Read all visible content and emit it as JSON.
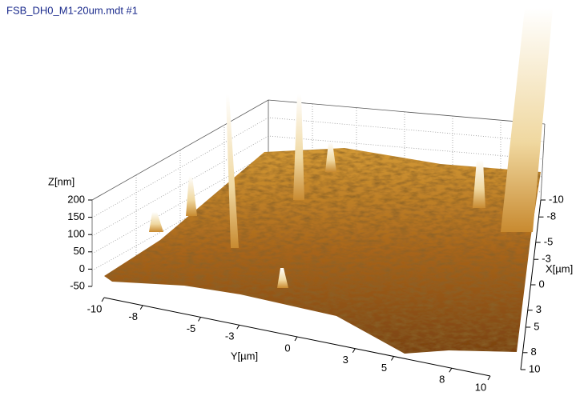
{
  "chart_data": {
    "type": "surface3d",
    "title": "FSB_DH0_M1-20um.mdt #1",
    "zlabel": "Z[nm]",
    "xlabel": "X[µm]",
    "ylabel": "Y[µm]",
    "zlim": [
      -50,
      200
    ],
    "zticks": [
      200,
      150,
      100,
      50,
      0,
      -50
    ],
    "xlim": [
      -10,
      10
    ],
    "xticks": [
      -10,
      -8,
      -5,
      -3,
      0,
      3,
      5,
      8,
      10
    ],
    "ylim": [
      -10,
      10
    ],
    "yticks": [
      -10,
      -8,
      -5,
      -3,
      0,
      3,
      5,
      8,
      10
    ],
    "grid": true,
    "color": "#b8741a"
  }
}
